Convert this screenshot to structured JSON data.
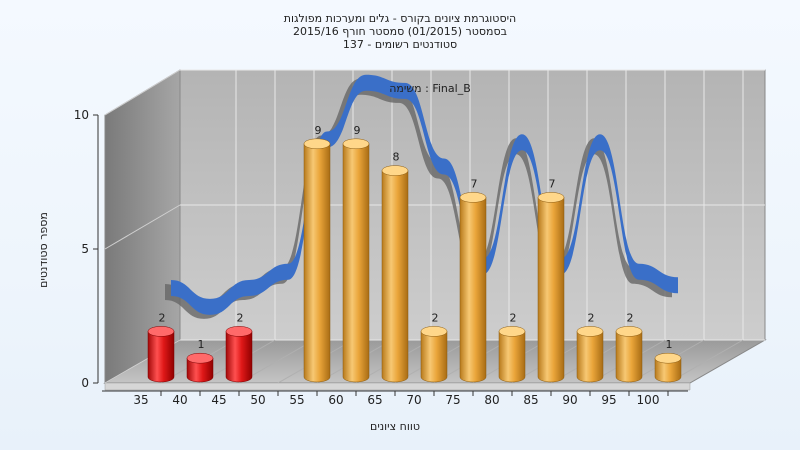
{
  "title_lines": [
    "היסטוגרמת ציונים בקורס - גלים ומערכות מפולגות",
    "בסמסטר  (01/2015)  סמסטר חורף 2015/16",
    "סטודנטים רשומים - 137"
  ],
  "task_label": "משימה : Final_B",
  "colors": {
    "fail_bar": "#e01818",
    "pass_bar": "#eda838",
    "curve": "#3a6fc8",
    "curve_shadow": "#666666"
  },
  "chart_data": {
    "type": "bar",
    "xlabel": "טווח ציונים",
    "ylabel": "מספר סטודנטים",
    "ylim": [
      0,
      10
    ],
    "yticks": [
      0,
      5,
      10
    ],
    "x_ticks": [
      "35",
      "40",
      "45",
      "50",
      "55",
      "60",
      "65",
      "70",
      "75",
      "80",
      "85",
      "90",
      "95",
      "100"
    ],
    "categories": [
      "35",
      "40",
      "45",
      "55",
      "60",
      "65",
      "70",
      "75",
      "80",
      "85",
      "90",
      "95",
      "100"
    ],
    "values": [
      2,
      1,
      2,
      9,
      9,
      8,
      2,
      7,
      2,
      7,
      2,
      2,
      1
    ],
    "fail_threshold": 50,
    "curve": {
      "x": [
        35,
        40,
        45,
        50,
        55,
        60,
        65,
        70,
        75,
        80,
        85,
        90,
        95,
        100
      ],
      "y": [
        2,
        1.3,
        2.0,
        2.6,
        7.5,
        9.6,
        9.3,
        6.5,
        2.8,
        7.4,
        2.8,
        7.4,
        2.6,
        2.1
      ]
    },
    "grid": true,
    "legend": "none"
  }
}
